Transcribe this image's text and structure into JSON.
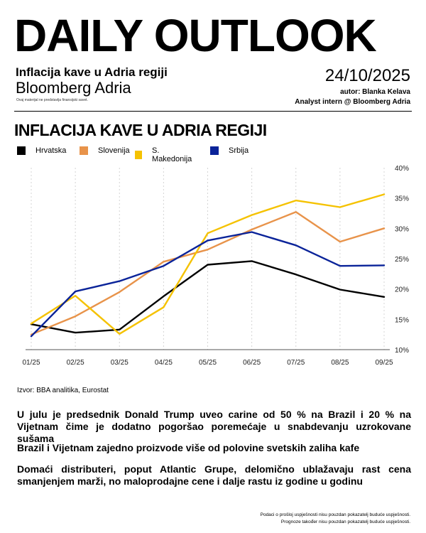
{
  "header": {
    "masthead": "DAILY OUTLOOK",
    "subtitle": "Inflacija kave u Adria regiji",
    "brand": "Bloomberg Adria",
    "disclaimer": "Ovaj materijal ne predstavlja finansijski savet.",
    "date": "24/10/2025",
    "author": "autor: Blanka Kelava",
    "analyst": "Analyst intern @ Bloomberg Adria"
  },
  "source": "Izvor: BBA analitika, Eurostat",
  "points": [
    "U julu je predsednik Donald Trump uveo carine od 50 % na Brazil i 20 % na Vijetnam čime je dodatno pogoršao poremećaje u snabdevanju uzrokovane sušama",
    "Brazil i Vijetnam zajedno proizvode više od polovine svetskih zaliha kafe",
    "Domaći distributeri, poput Atlantic Grupe, delomično ublažavaju rast cena smanjenjem marži, no maloprodajne cene i dalje rastu iz godine u godinu"
  ],
  "footer": {
    "line1": "Podaci o prošloj uspješnosti nisu pouzdan pokazatelj buduće uspješnosti.",
    "line2": "Prognoze također nisu pouzdan pokazatelj buduće uspješnosti."
  },
  "chart_data": {
    "type": "line",
    "title": "INFLACIJA KAVE U ADRIA REGIJI",
    "categories": [
      "01/25",
      "02/25",
      "03/25",
      "04/25",
      "05/25",
      "06/25",
      "07/25",
      "08/25",
      "09/25"
    ],
    "series": [
      {
        "name": "Hrvatska",
        "color": "#000000",
        "values": [
          14.2,
          12.8,
          13.3,
          18.8,
          24.0,
          24.6,
          22.4,
          19.9,
          18.7
        ]
      },
      {
        "name": "Slovenija",
        "color": "#E8934A",
        "values": [
          12.5,
          15.5,
          19.5,
          24.5,
          26.5,
          29.8,
          32.7,
          27.8,
          30.0
        ]
      },
      {
        "name": "S. Makedonija",
        "color": "#F5C200",
        "values": [
          14.3,
          18.9,
          12.6,
          17.0,
          29.2,
          32.2,
          34.6,
          33.5,
          35.6
        ]
      },
      {
        "name": "Srbija",
        "color": "#0A2399",
        "values": [
          12.2,
          19.6,
          21.3,
          23.8,
          28.0,
          29.4,
          27.2,
          23.8,
          23.9
        ]
      }
    ],
    "y_ticks": [
      "10%",
      "15%",
      "20%",
      "25%",
      "30%",
      "35%",
      "40%"
    ],
    "ylim": [
      10,
      40
    ],
    "grid": "vertical",
    "legend": "top-left"
  }
}
